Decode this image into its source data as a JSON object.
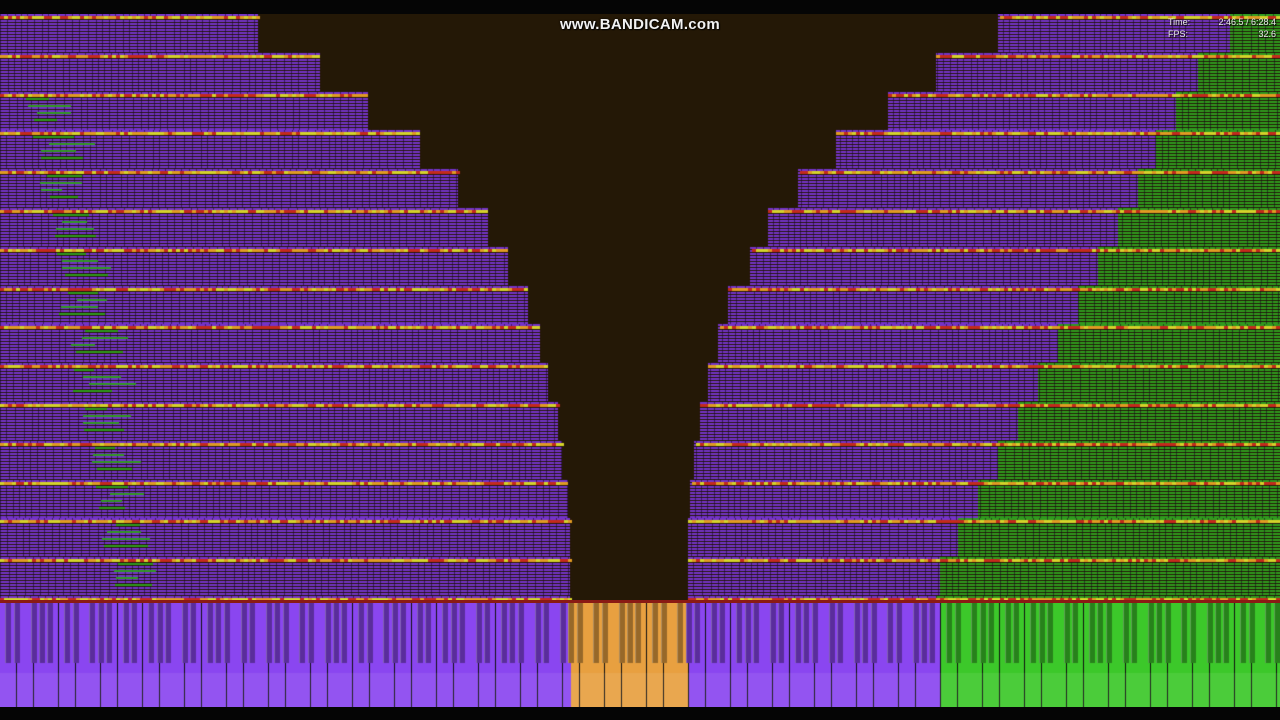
{
  "watermark": "www.BANDICAM.com",
  "stats": {
    "time_label": "Time:",
    "time_value": "2:46.5 / 6:28.4",
    "fps_label": "FPS:",
    "fps_value": "32.6"
  },
  "palette": {
    "background": "#241806",
    "note_purple": "#7433c8",
    "note_green": "#2f9a1e",
    "key_purple": "#8a46f0",
    "key_green": "#3cc82a",
    "key_orange": "#e8a040",
    "stripe_orange": "#e09a22",
    "stripe_yellow": "#d4d22a",
    "stripe_red": "#c42a1c",
    "hit_line": "#8a1a14"
  },
  "keyboard": {
    "segments": [
      {
        "color_key": "key_purple",
        "from": 0.0,
        "to": 0.445
      },
      {
        "color_key": "key_orange",
        "from": 0.445,
        "to": 0.535
      },
      {
        "color_key": "key_purple",
        "from": 0.535,
        "to": 0.732
      },
      {
        "color_key": "key_green",
        "from": 0.732,
        "to": 1.0
      }
    ]
  }
}
